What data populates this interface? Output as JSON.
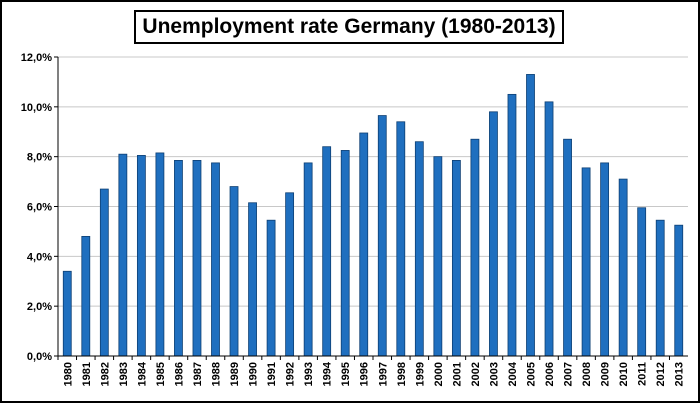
{
  "chart_data": {
    "type": "bar",
    "title": "Unemployment rate Germany (1980-2013)",
    "xlabel": "",
    "ylabel": "",
    "ylim": [
      0,
      12
    ],
    "yticks": [
      "0,0%",
      "2,0%",
      "4,0%",
      "6,0%",
      "8,0%",
      "10,0%",
      "12,0%"
    ],
    "grid": true,
    "legend": "none",
    "colors": {
      "bar": "#1f6fbf",
      "bar_edge": "#0d3f73",
      "grid": "#c8c8c8"
    },
    "categories": [
      "1980",
      "1981",
      "1982",
      "1983",
      "1984",
      "1985",
      "1986",
      "1987",
      "1988",
      "1989",
      "1990",
      "1991",
      "1992",
      "1993",
      "1994",
      "1995",
      "1996",
      "1997",
      "1998",
      "1999",
      "2000",
      "2001",
      "2002",
      "2003",
      "2004",
      "2005",
      "2006",
      "2007",
      "2008",
      "2009",
      "2010",
      "2011",
      "2012",
      "2013"
    ],
    "values": [
      3.4,
      4.8,
      6.7,
      8.1,
      8.05,
      8.15,
      7.85,
      7.85,
      7.75,
      6.8,
      6.15,
      5.45,
      6.55,
      7.75,
      8.4,
      8.25,
      8.95,
      9.65,
      9.4,
      8.6,
      8.0,
      7.85,
      8.7,
      9.8,
      10.5,
      11.3,
      10.2,
      8.7,
      7.55,
      7.75,
      7.1,
      5.95,
      5.45,
      5.25
    ]
  }
}
